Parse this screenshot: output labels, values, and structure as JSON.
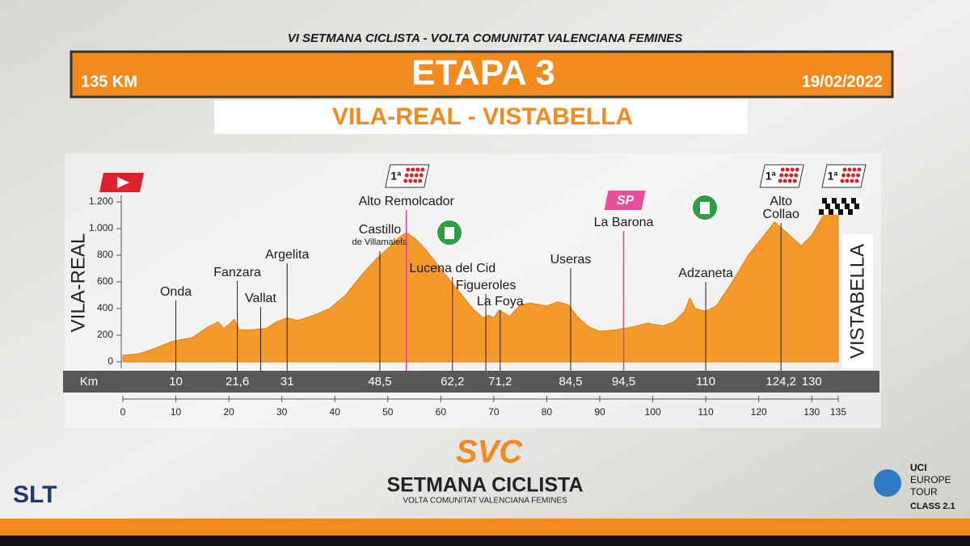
{
  "header": {
    "event": "VI SETMANA CICLISTA - VOLTA COMUNITAT VALENCIANA FEMINES",
    "stage": "ETAPA 3",
    "distance": "135 KM",
    "date": "19/02/2022",
    "route": "VILA-REAL - VISTABELLA"
  },
  "chart_data": {
    "type": "area",
    "color": "#f39a2b",
    "x": [
      0,
      3,
      6,
      9,
      10,
      13,
      16,
      18,
      19,
      20,
      21,
      22,
      24,
      27,
      29,
      31,
      33,
      36,
      39,
      42,
      45,
      48,
      50,
      52,
      53.5,
      55,
      57,
      60,
      62,
      64,
      66,
      68,
      69,
      70,
      71,
      73,
      75,
      77,
      80,
      82,
      84,
      86,
      88,
      90,
      93,
      96,
      99,
      102,
      104,
      106,
      107,
      108,
      110,
      112,
      115,
      118,
      121,
      123,
      125,
      128,
      130,
      133,
      135
    ],
    "values": [
      50,
      60,
      100,
      150,
      160,
      180,
      260,
      300,
      250,
      280,
      320,
      240,
      240,
      250,
      300,
      330,
      310,
      350,
      400,
      500,
      650,
      780,
      850,
      930,
      970,
      930,
      850,
      700,
      600,
      500,
      400,
      330,
      350,
      330,
      390,
      340,
      430,
      440,
      420,
      450,
      430,
      330,
      260,
      230,
      240,
      260,
      290,
      270,
      300,
      380,
      480,
      400,
      380,
      420,
      600,
      800,
      950,
      1050,
      980,
      870,
      950,
      1150,
      1230
    ],
    "xlim": [
      0,
      135
    ],
    "xticks": [
      0,
      10,
      20,
      30,
      40,
      50,
      60,
      70,
      80,
      90,
      100,
      110,
      120,
      130,
      135
    ],
    "ylim": [
      0,
      1200
    ],
    "yticks": [
      0,
      200,
      400,
      600,
      800,
      {
        "value": 1000,
        "label": "1.000"
      },
      {
        "value": 1200,
        "label": "1.200"
      }
    ],
    "start": "VILA-REAL",
    "finish": "VISTABELLA",
    "km_title": "Km",
    "km_markers": [
      10,
      {
        "value": 21.6,
        "label": "21,6"
      },
      31,
      {
        "value": 48.5,
        "label": "48,5"
      },
      {
        "value": 62.2,
        "label": "62,2"
      },
      {
        "value": 71.2,
        "label": "71,2"
      },
      {
        "value": 84.5,
        "label": "84,5"
      },
      {
        "value": 94.5,
        "label": "94,5"
      },
      110,
      {
        "value": 124.2,
        "label": "124,2"
      },
      130
    ],
    "places": [
      {
        "lines": [
          "Onda"
        ],
        "km": 10
      },
      {
        "lines": [
          "Fanzara"
        ],
        "km": 21.6
      },
      {
        "lines": [
          "Vallat"
        ],
        "km": 26
      },
      {
        "lines": [
          "Argelita"
        ],
        "km": 31
      },
      {
        "lines": [
          "Castillo",
          "de Villamalefa"
        ],
        "km": 48.5
      },
      {
        "lines": [
          "Alto Remolcador"
        ],
        "km": 53.5
      },
      {
        "lines": [
          "Lucena del Cid"
        ],
        "km": 62.2
      },
      {
        "lines": [
          "Figueroles"
        ],
        "km": 68.5
      },
      {
        "lines": [
          "La Foya"
        ],
        "km": 71.2
      },
      {
        "lines": [
          "Useras"
        ],
        "km": 84.5
      },
      {
        "lines": [
          "La Barona"
        ],
        "km": 94.5
      },
      {
        "lines": [
          "Adzaneta"
        ],
        "km": 110
      },
      {
        "lines": [
          "Alto",
          "Collao"
        ],
        "km": 124.2
      }
    ],
    "kom_label": "1ª",
    "sprint_label": "SP"
  },
  "footer": {
    "logo": "SVC",
    "name": "SETMANA CICLISTA",
    "subtitle": "VOLTA COMUNITAT VALENCIANA FEMINES",
    "left_logo": "SLT",
    "uci": [
      "UCI",
      "EUROPE",
      "TOUR",
      "CLASS 2.1"
    ]
  }
}
